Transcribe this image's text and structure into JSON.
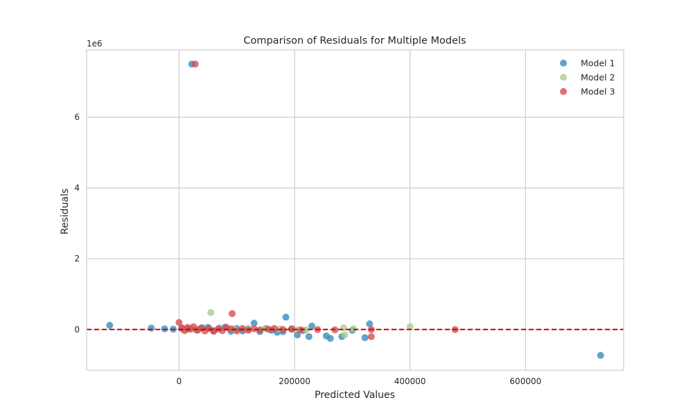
{
  "chart_data": {
    "type": "scatter",
    "title": "Comparison of Residuals for Multiple Models",
    "xlabel": "Predicted Values",
    "ylabel": "Residuals",
    "y_offset_text": "1e6",
    "y_scale_factor": 1000000,
    "xlim": [
      -160000,
      770000
    ],
    "ylim": [
      -1150000,
      7900000
    ],
    "xticks": [
      0,
      200000,
      400000,
      600000
    ],
    "yticks": [
      0,
      2,
      4,
      6
    ],
    "grid": true,
    "legend": "top-right",
    "reference_line": {
      "y": 0,
      "style": "dashed",
      "color": "#cc0000"
    },
    "series": [
      {
        "name": "Model 1",
        "color": "#348abd",
        "points": [
          [
            -120000,
            120000
          ],
          [
            -48000,
            40000
          ],
          [
            -25000,
            20000
          ],
          [
            -10000,
            10000
          ],
          [
            5000,
            30000
          ],
          [
            15000,
            20000
          ],
          [
            22000,
            7500000
          ],
          [
            30000,
            -10000
          ],
          [
            40000,
            50000
          ],
          [
            50000,
            60000
          ],
          [
            60000,
            -30000
          ],
          [
            70000,
            40000
          ],
          [
            80000,
            70000
          ],
          [
            90000,
            -50000
          ],
          [
            100000,
            30000
          ],
          [
            110000,
            -40000
          ],
          [
            120000,
            20000
          ],
          [
            130000,
            180000
          ],
          [
            140000,
            -60000
          ],
          [
            150000,
            30000
          ],
          [
            160000,
            -20000
          ],
          [
            170000,
            -80000
          ],
          [
            180000,
            -60000
          ],
          [
            185000,
            350000
          ],
          [
            195000,
            20000
          ],
          [
            205000,
            -150000
          ],
          [
            215000,
            -30000
          ],
          [
            225000,
            -200000
          ],
          [
            230000,
            100000
          ],
          [
            255000,
            -180000
          ],
          [
            262000,
            -250000
          ],
          [
            282000,
            -200000
          ],
          [
            300000,
            -20000
          ],
          [
            322000,
            -230000
          ],
          [
            330000,
            160000
          ],
          [
            730000,
            -730000
          ]
        ]
      },
      {
        "name": "Model 2",
        "color": "#a8cd88",
        "points": [
          [
            10000,
            10000
          ],
          [
            30000,
            20000
          ],
          [
            55000,
            480000
          ],
          [
            70000,
            30000
          ],
          [
            95000,
            20000
          ],
          [
            120000,
            10000
          ],
          [
            150000,
            30000
          ],
          [
            175000,
            20000
          ],
          [
            200000,
            10000
          ],
          [
            220000,
            -10000
          ],
          [
            285000,
            50000
          ],
          [
            287000,
            -150000
          ],
          [
            302000,
            20000
          ],
          [
            400000,
            80000
          ]
        ]
      },
      {
        "name": "Model 3",
        "color": "#d9494b",
        "points": [
          [
            0,
            200000
          ],
          [
            5000,
            50000
          ],
          [
            10000,
            -30000
          ],
          [
            15000,
            60000
          ],
          [
            20000,
            10000
          ],
          [
            25000,
            80000
          ],
          [
            28000,
            7500000
          ],
          [
            32000,
            -20000
          ],
          [
            38000,
            40000
          ],
          [
            45000,
            -40000
          ],
          [
            52000,
            30000
          ],
          [
            60000,
            -50000
          ],
          [
            68000,
            20000
          ],
          [
            75000,
            -30000
          ],
          [
            82000,
            60000
          ],
          [
            90000,
            20000
          ],
          [
            92000,
            450000
          ],
          [
            100000,
            -40000
          ],
          [
            110000,
            30000
          ],
          [
            120000,
            -20000
          ],
          [
            130000,
            20000
          ],
          [
            140000,
            -10000
          ],
          [
            155000,
            10000
          ],
          [
            165000,
            30000
          ],
          [
            180000,
            0
          ],
          [
            195000,
            10000
          ],
          [
            210000,
            -10000
          ],
          [
            240000,
            0
          ],
          [
            270000,
            -10000
          ],
          [
            333000,
            -200000
          ],
          [
            333000,
            0
          ],
          [
            478000,
            0
          ]
        ]
      }
    ]
  }
}
